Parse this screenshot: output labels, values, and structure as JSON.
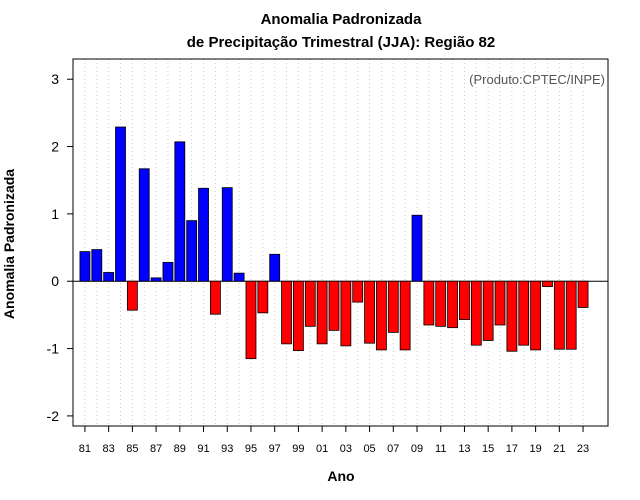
{
  "chart_data": {
    "type": "bar",
    "title_line1": "Anomalia Padronizada",
    "title_line2": "de Precipitação Trimestral (JJA): Região 82",
    "xlabel": "Ano",
    "ylabel": "Anomalia Padronizada",
    "credit": "(Produto:CPTEC/INPE)",
    "ylim": [
      -2.15,
      3.3
    ],
    "yticks": [
      -2,
      -1,
      0,
      1,
      2,
      3
    ],
    "ytick_labels": [
      "-2",
      "-1",
      "0",
      "1",
      "2",
      "3"
    ],
    "categories": [
      "81",
      "82",
      "83",
      "84",
      "85",
      "86",
      "87",
      "88",
      "89",
      "90",
      "91",
      "92",
      "93",
      "94",
      "95",
      "96",
      "97",
      "98",
      "99",
      "00",
      "01",
      "02",
      "03",
      "04",
      "05",
      "06",
      "07",
      "08",
      "09",
      "10",
      "11",
      "12",
      "13",
      "14",
      "15",
      "16",
      "17",
      "18",
      "19",
      "20",
      "21",
      "22",
      "23"
    ],
    "xtick_labels": [
      "81",
      "83",
      "85",
      "87",
      "89",
      "91",
      "93",
      "95",
      "97",
      "99",
      "01",
      "03",
      "05",
      "07",
      "09",
      "11",
      "13",
      "15",
      "17",
      "19",
      "21",
      "23"
    ],
    "values": [
      0.44,
      0.47,
      0.13,
      2.29,
      -0.43,
      1.67,
      0.05,
      0.28,
      2.07,
      0.9,
      1.38,
      -0.49,
      1.39,
      0.12,
      -1.15,
      -0.47,
      0.4,
      -0.93,
      -1.03,
      -0.67,
      -0.93,
      -0.73,
      -0.96,
      -0.31,
      -0.92,
      -1.02,
      -0.76,
      -1.02,
      0.98,
      -0.65,
      -0.67,
      -0.69,
      -0.57,
      -0.95,
      -0.88,
      -0.65,
      -1.04,
      -0.95,
      -1.02,
      -0.08,
      -1.01,
      -1.01,
      -0.39
    ],
    "positive_color": "#0000ff",
    "negative_color": "#ff0000",
    "grid": true,
    "grid_color": "#cccccc",
    "legend": "none"
  }
}
